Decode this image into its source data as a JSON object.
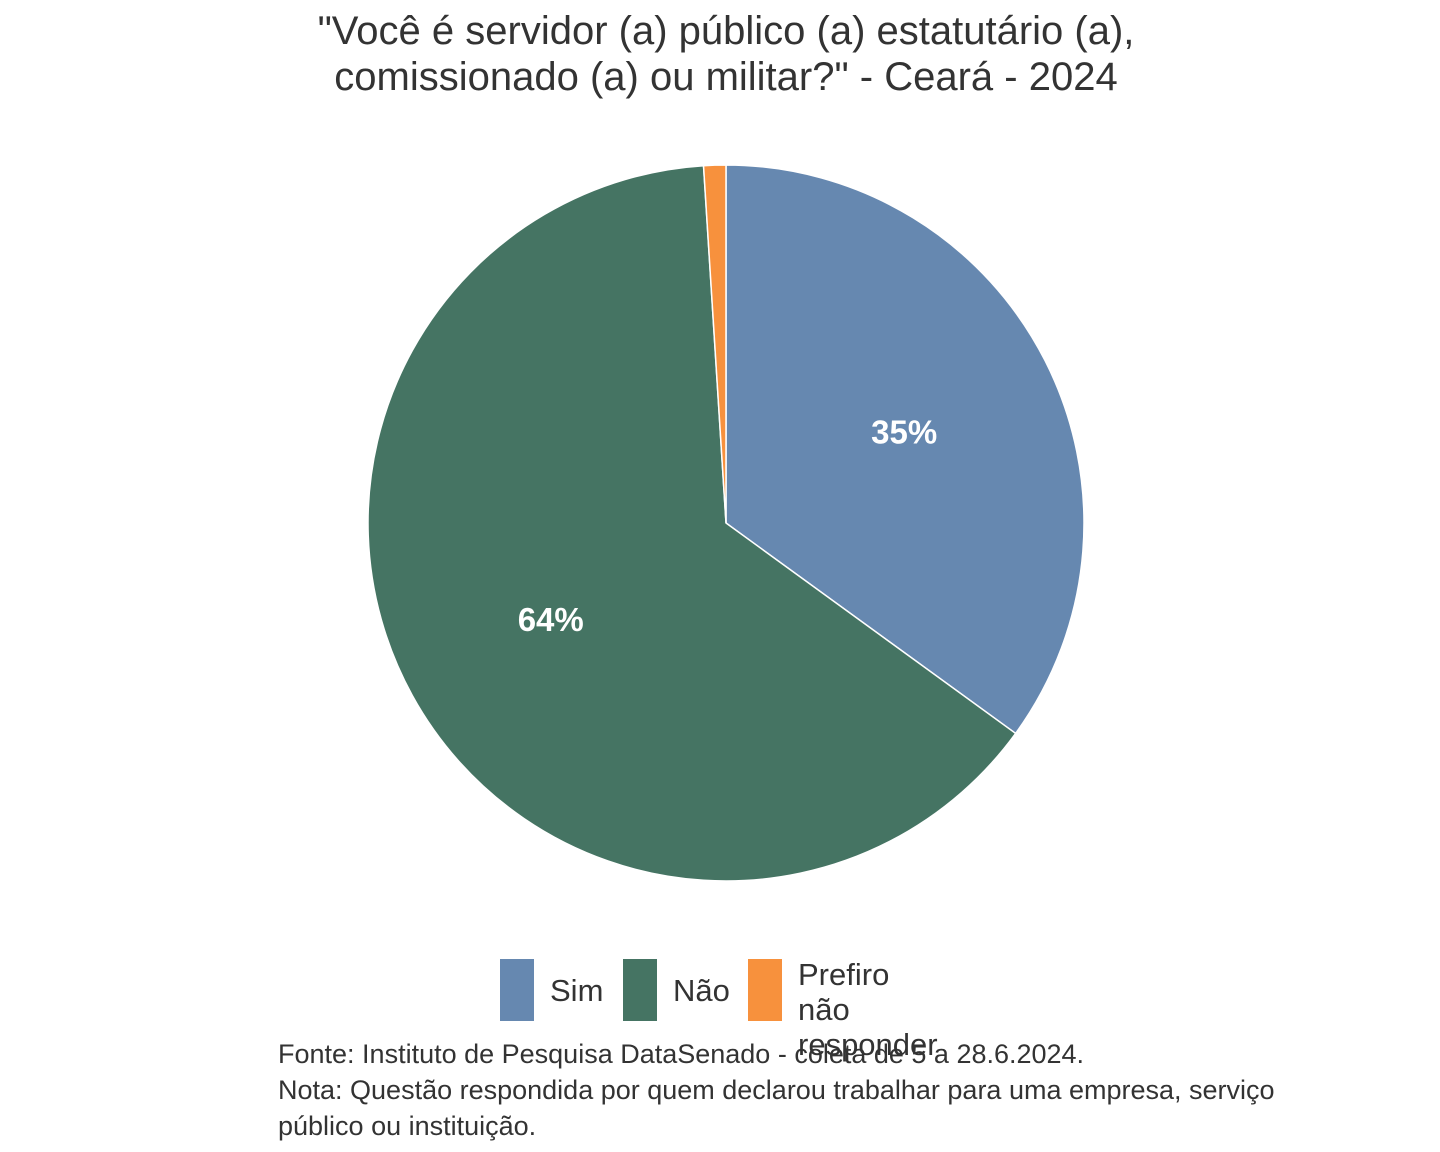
{
  "chart_data": {
    "type": "pie",
    "title_lines": [
      "\"Você é servidor (a) público (a) estatutário (a),",
      "comissionado (a) ou militar?\" - Ceará - 2024"
    ],
    "start": "12 o'clock",
    "direction": "clockwise",
    "slices": [
      {
        "label": "Sim",
        "value": 35,
        "data_label": "35%",
        "color": "#6688b0"
      },
      {
        "label": "Não",
        "value": 64,
        "data_label": "64%",
        "color": "#457463"
      },
      {
        "label": "Prefiro não responder",
        "value": 1,
        "data_label": "",
        "color": "#f7913d"
      }
    ],
    "legend": {
      "position": "bottom",
      "items": [
        {
          "label": "Sim",
          "color": "#6688b0"
        },
        {
          "label": "Não",
          "color": "#457463"
        },
        {
          "label": "Prefiro não\nresponder",
          "color": "#f7913d"
        }
      ]
    },
    "caption_lines": [
      "Fonte: Instituto de Pesquisa DataSenado - coleta de 5 a 28.6.2024.",
      "Nota: Questão respondida por quem declarou trabalhar para uma empresa, serviço",
      "público ou instituição."
    ]
  }
}
